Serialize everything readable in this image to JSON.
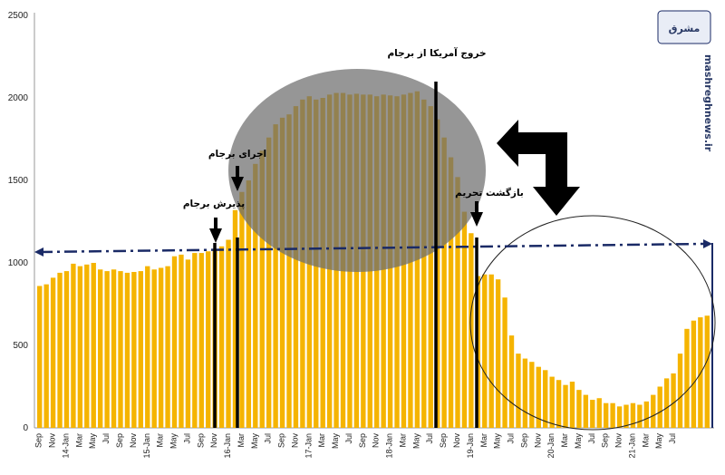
{
  "chart_data": {
    "type": "bar",
    "title": "",
    "xlabel": "",
    "ylabel": "",
    "ylim": [
      0,
      2500
    ],
    "yticks": [
      0,
      500,
      1000,
      1500,
      2000,
      2500
    ],
    "x_tick_labels": [
      "Sep",
      "Nov",
      "14-Jan",
      "Mar",
      "May",
      "Jul",
      "Sep",
      "Nov",
      "15-Jan",
      "Mar",
      "May",
      "Jul",
      "Sep",
      "Nov",
      "16-Jan",
      "Mar",
      "May",
      "Jul",
      "Sep",
      "Nov",
      "17-Jan",
      "Mar",
      "May",
      "Jul",
      "Sep",
      "Nov",
      "18-Jan",
      "Mar",
      "May",
      "Jul",
      "Sep",
      "Nov",
      "19-Jan",
      "Mar",
      "May",
      "Jul",
      "Sep",
      "Nov",
      "20-Jan",
      "Mar",
      "May",
      "Jul",
      "Sep",
      "Nov",
      "21-Jan",
      "Mar",
      "May",
      "Jul"
    ],
    "values": [
      860,
      870,
      910,
      940,
      950,
      995,
      980,
      990,
      1000,
      960,
      950,
      960,
      950,
      940,
      945,
      950,
      980,
      960,
      970,
      980,
      1040,
      1050,
      1020,
      1060,
      1060,
      1070,
      1080,
      1100,
      1140,
      1320,
      1430,
      1500,
      1600,
      1680,
      1760,
      1840,
      1880,
      1900,
      1950,
      1990,
      2010,
      1990,
      2000,
      2020,
      2030,
      2030,
      2020,
      2025,
      2020,
      2020,
      2010,
      2020,
      2015,
      2010,
      2020,
      2030,
      2040,
      1990,
      1950,
      1870,
      1760,
      1640,
      1520,
      1310,
      1180,
      920,
      930,
      930,
      900,
      790,
      560,
      450,
      420,
      400,
      370,
      350,
      310,
      290,
      260,
      280,
      230,
      200,
      170,
      180,
      150,
      150,
      130,
      140,
      150,
      140,
      160,
      200,
      250,
      300,
      330,
      450,
      600,
      650,
      670,
      680
    ],
    "annotations": {
      "accept_jcpoa": "پذیرش برجام",
      "implement_jcpoa": "اجرای برجام",
      "us_exit": "خروج آمریکا از برجام",
      "sanctions_return": "بازگشت تحریم"
    }
  },
  "watermark": {
    "text": "mashreghnews.ir",
    "logo_text": "مشرق"
  }
}
